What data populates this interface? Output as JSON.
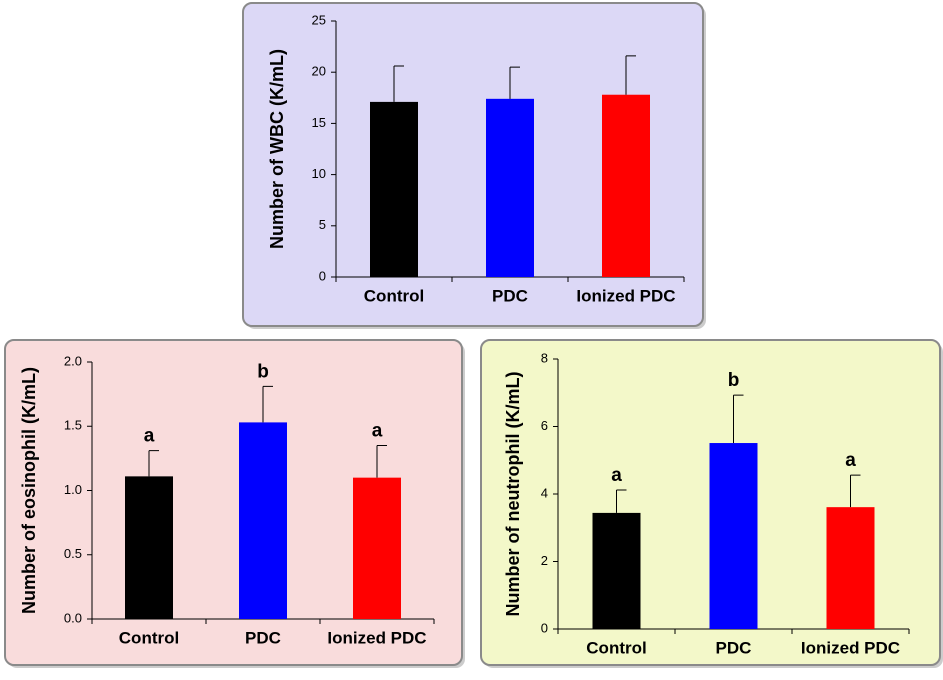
{
  "chart_data": [
    {
      "type": "bar",
      "y_label": "Number of WBC (K/mL)",
      "categories": [
        "Control",
        "PDC",
        "Ionized PDC"
      ],
      "values": [
        17.1,
        17.4,
        17.8
      ],
      "errors": [
        3.5,
        3.1,
        3.8
      ],
      "colors": [
        "#000000",
        "#0000ff",
        "#ff0000"
      ],
      "ylim": [
        0,
        25
      ],
      "yticks": [
        0,
        5,
        10,
        15,
        20,
        25
      ],
      "background": "#dcd8f6"
    },
    {
      "type": "bar",
      "y_label": "Number of eosinophil (K/mL)",
      "categories": [
        "Control",
        "PDC",
        "Ionized PDC"
      ],
      "values": [
        1.11,
        1.53,
        1.1
      ],
      "errors": [
        0.2,
        0.28,
        0.25
      ],
      "annotations": [
        "a",
        "b",
        "a"
      ],
      "colors": [
        "#000000",
        "#0000ff",
        "#ff0000"
      ],
      "ylim": [
        0,
        2
      ],
      "yticks": [
        {
          "value": 0,
          "label": "0.0"
        },
        {
          "value": 0.5,
          "label": "0.5"
        },
        {
          "value": 1,
          "label": "1.0"
        },
        {
          "value": 1.5,
          "label": "1.5"
        },
        {
          "value": 2,
          "label": "2.0"
        }
      ],
      "background": "#f9dcdc"
    },
    {
      "type": "bar",
      "y_label": "Number of neutrophil (K/mL)",
      "categories": [
        "Control",
        "PDC",
        "Ionized PDC"
      ],
      "values": [
        3.44,
        5.51,
        3.61
      ],
      "errors": [
        0.68,
        1.42,
        0.95
      ],
      "annotations": [
        "a",
        "b",
        "a"
      ],
      "colors": [
        "#000000",
        "#0000ff",
        "#ff0000"
      ],
      "ylim": [
        0,
        8
      ],
      "yticks": [
        0,
        2,
        4,
        6,
        8
      ],
      "background": "#f3f8c9"
    }
  ]
}
